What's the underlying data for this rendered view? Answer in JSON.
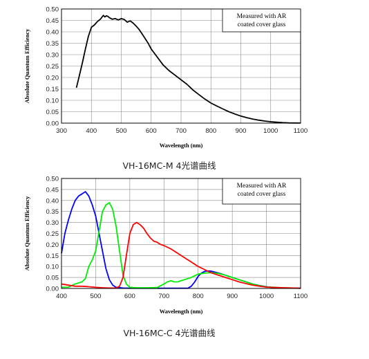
{
  "captions": {
    "top": "VH-16MC-M 4光谱曲线",
    "bottom": "VH-16MC-C 4光谱曲线"
  },
  "chart_data": [
    {
      "type": "line",
      "ylabel": "Absolute Quantum Efficiency",
      "xlabel": "Wavelength (nm)",
      "xlim": [
        300,
        1100
      ],
      "ylim": [
        0,
        0.5
      ],
      "x_ticks": [
        "300",
        "400",
        "500",
        "600",
        "700",
        "800",
        "900",
        "1000",
        "1100"
      ],
      "y_ticks": [
        "0.00",
        "0.05",
        "0.10",
        "0.15",
        "0.20",
        "0.25",
        "0.30",
        "0.35",
        "0.40",
        "0.45",
        "0.50"
      ],
      "grid": true,
      "annotation": [
        "Measured with AR",
        "coated cover glass"
      ],
      "series": [
        {
          "color": "#000000",
          "x": [
            350,
            360,
            370,
            380,
            390,
            400,
            410,
            420,
            430,
            440,
            445,
            450,
            455,
            460,
            470,
            480,
            490,
            500,
            510,
            520,
            530,
            540,
            550,
            560,
            570,
            580,
            590,
            600,
            620,
            640,
            660,
            680,
            700,
            720,
            740,
            760,
            780,
            800,
            820,
            840,
            860,
            880,
            900,
            920,
            940,
            960,
            980,
            1000,
            1020,
            1040,
            1060,
            1080,
            1100
          ],
          "y": [
            0.155,
            0.21,
            0.265,
            0.325,
            0.38,
            0.42,
            0.43,
            0.445,
            0.455,
            0.472,
            0.465,
            0.47,
            0.468,
            0.462,
            0.455,
            0.458,
            0.452,
            0.458,
            0.454,
            0.442,
            0.448,
            0.438,
            0.425,
            0.41,
            0.39,
            0.37,
            0.35,
            0.325,
            0.29,
            0.255,
            0.23,
            0.21,
            0.19,
            0.17,
            0.145,
            0.125,
            0.105,
            0.088,
            0.075,
            0.062,
            0.05,
            0.04,
            0.031,
            0.024,
            0.018,
            0.013,
            0.009,
            0.006,
            0.004,
            0.002,
            0.001,
            0.0005,
            0.0002
          ]
        }
      ]
    },
    {
      "type": "line",
      "ylabel": "Absolute Quantum Efficiency",
      "xlabel": "Wavelength (nm)",
      "xlim": [
        400,
        1100
      ],
      "ylim": [
        0,
        0.5
      ],
      "x_ticks": [
        "400",
        "500",
        "600",
        "700",
        "800",
        "900",
        "1000",
        "1100"
      ],
      "y_ticks": [
        "0.00",
        "0.05",
        "0.10",
        "0.15",
        "0.20",
        "0.25",
        "0.30",
        "0.35",
        "0.40",
        "0.45",
        "0.50"
      ],
      "grid": true,
      "annotation": [
        "Measured with AR",
        "coated cover glass"
      ],
      "series": [
        {
          "color": "#0000ff",
          "x": [
            400,
            410,
            420,
            430,
            440,
            450,
            460,
            470,
            480,
            490,
            500,
            510,
            520,
            530,
            540,
            550,
            560,
            580,
            600,
            650,
            700,
            750,
            770,
            780,
            790,
            800,
            810,
            820,
            830,
            840,
            850,
            860,
            880,
            900,
            920,
            940,
            960,
            980,
            1000,
            1020,
            1050,
            1100
          ],
          "y": [
            0.16,
            0.25,
            0.31,
            0.36,
            0.4,
            0.42,
            0.43,
            0.44,
            0.42,
            0.38,
            0.33,
            0.25,
            0.17,
            0.09,
            0.04,
            0.015,
            0.005,
            0.002,
            0.001,
            0.001,
            0.001,
            0.001,
            0.001,
            0.01,
            0.03,
            0.055,
            0.07,
            0.078,
            0.08,
            0.078,
            0.074,
            0.07,
            0.06,
            0.05,
            0.04,
            0.03,
            0.02,
            0.013,
            0.008,
            0.004,
            0.002,
            0.001
          ]
        },
        {
          "color": "#00ee00",
          "x": [
            400,
            420,
            440,
            460,
            470,
            480,
            490,
            500,
            510,
            520,
            530,
            540,
            550,
            560,
            570,
            580,
            590,
            600,
            620,
            650,
            680,
            700,
            710,
            720,
            730,
            740,
            750,
            760,
            770,
            780,
            800,
            820,
            840,
            860,
            880,
            900,
            920,
            940,
            960,
            980,
            1000,
            1050,
            1100
          ],
          "y": [
            0.005,
            0.006,
            0.02,
            0.03,
            0.045,
            0.1,
            0.13,
            0.17,
            0.26,
            0.35,
            0.38,
            0.39,
            0.36,
            0.28,
            0.17,
            0.06,
            0.02,
            0.005,
            0.003,
            0.003,
            0.004,
            0.02,
            0.03,
            0.035,
            0.03,
            0.03,
            0.035,
            0.04,
            0.045,
            0.05,
            0.065,
            0.07,
            0.072,
            0.068,
            0.06,
            0.05,
            0.04,
            0.03,
            0.02,
            0.012,
            0.007,
            0.003,
            0.001
          ]
        },
        {
          "color": "#ff0000",
          "x": [
            400,
            420,
            440,
            460,
            480,
            500,
            520,
            540,
            560,
            570,
            580,
            590,
            600,
            610,
            620,
            630,
            640,
            650,
            660,
            670,
            680,
            690,
            700,
            720,
            740,
            760,
            780,
            800,
            820,
            840,
            860,
            880,
            900,
            920,
            940,
            960,
            980,
            1000,
            1050,
            1100
          ],
          "y": [
            0.02,
            0.015,
            0.01,
            0.01,
            0.008,
            0.005,
            0.003,
            0.002,
            0.002,
            0.01,
            0.05,
            0.15,
            0.25,
            0.29,
            0.3,
            0.29,
            0.275,
            0.25,
            0.23,
            0.215,
            0.21,
            0.2,
            0.195,
            0.18,
            0.16,
            0.14,
            0.12,
            0.1,
            0.085,
            0.07,
            0.06,
            0.05,
            0.04,
            0.03,
            0.022,
            0.015,
            0.01,
            0.006,
            0.003,
            0.001
          ]
        }
      ]
    }
  ]
}
